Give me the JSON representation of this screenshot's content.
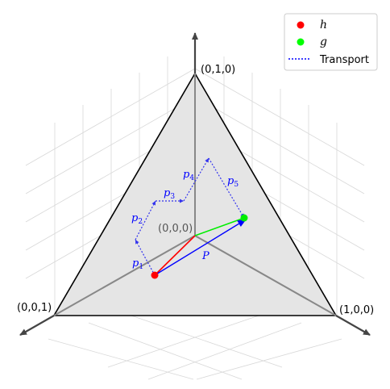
{
  "corners": {
    "top": "(0,1,0)",
    "left": "(0,0,1)",
    "right": "(1,0,0)",
    "origin": "(0,0,0)"
  },
  "points": {
    "h": {
      "label": "h",
      "color": "#ff0000"
    },
    "g": {
      "label": "g",
      "color": "#00ee00"
    }
  },
  "paths": {
    "direct_label": "P",
    "segments": [
      {
        "base": "p",
        "sub": "1"
      },
      {
        "base": "p",
        "sub": "2"
      },
      {
        "base": "p",
        "sub": "3"
      },
      {
        "base": "p",
        "sub": "4"
      },
      {
        "base": "p",
        "sub": "5"
      }
    ],
    "color": "#0000ff"
  },
  "legend": {
    "items": [
      {
        "label": "h",
        "color": "#ff0000",
        "kind": "dot"
      },
      {
        "label": "g",
        "color": "#00ff00",
        "kind": "dot"
      },
      {
        "label": "Transport",
        "color": "#0000ff",
        "kind": "dotted-line"
      }
    ]
  }
}
